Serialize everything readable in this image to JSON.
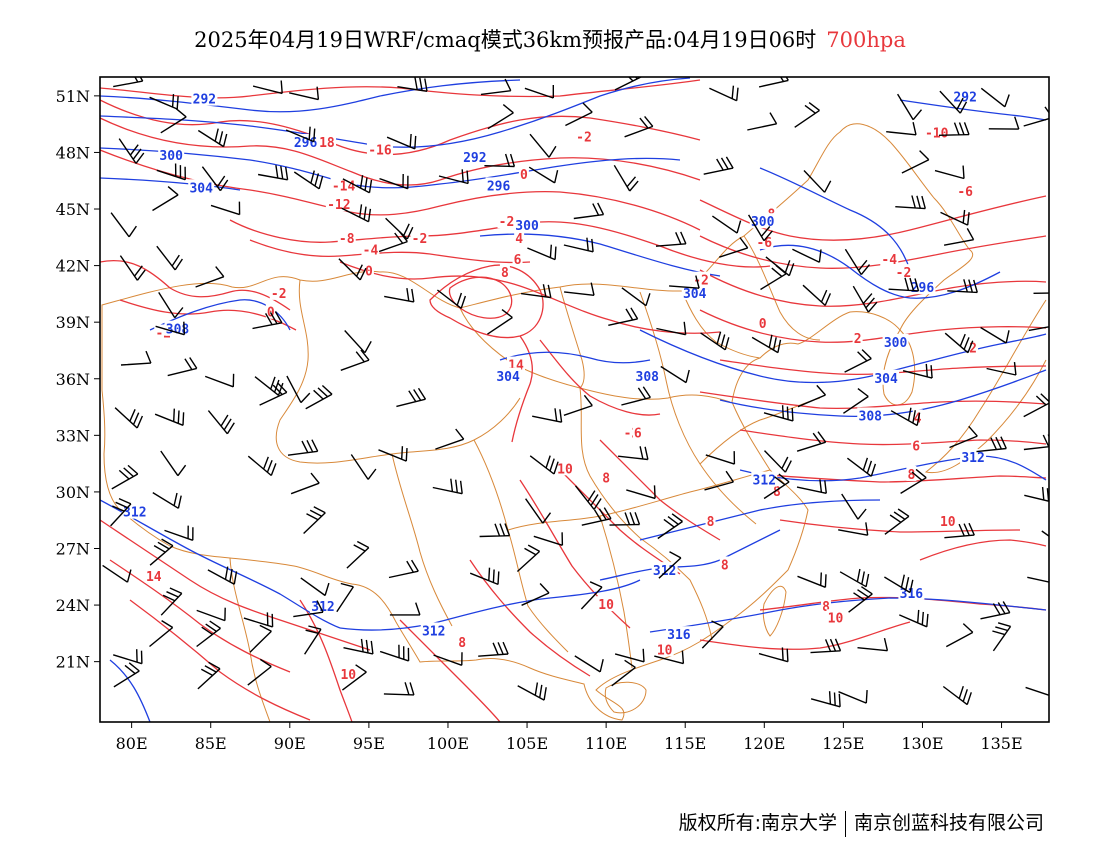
{
  "title": {
    "main": "2025年04月19日WRF/cmaq模式36km预报产品:04月19日06时",
    "level": "700hpa"
  },
  "colors": {
    "temperature": "#e8373c",
    "height": "#1f3fe0",
    "boundary": "#d8893a",
    "wind": "#000000",
    "level_text": "#e8373c"
  },
  "map": {
    "lon_range": [
      78,
      138
    ],
    "lat_range": [
      17.8,
      52
    ],
    "lon_ticks": [
      "80E",
      "85E",
      "90E",
      "95E",
      "100E",
      "105E",
      "110E",
      "115E",
      "120E",
      "125E",
      "130E",
      "135E"
    ],
    "lat_ticks": [
      "51N",
      "48N",
      "45N",
      "42N",
      "39N",
      "36N",
      "33N",
      "30N",
      "27N",
      "24N",
      "21N"
    ],
    "temperature_labels": [
      {
        "text": "-18",
        "lon": 92.1,
        "lat": 48.5
      },
      {
        "text": "-16",
        "lon": 95.7,
        "lat": 48.1
      },
      {
        "text": "-14",
        "lon": 93.4,
        "lat": 46.2
      },
      {
        "text": "-12",
        "lon": 93.1,
        "lat": 45.2
      },
      {
        "text": "-8",
        "lon": 93.6,
        "lat": 43.4
      },
      {
        "text": "-4",
        "lon": 95.1,
        "lat": 42.8
      },
      {
        "text": "-2",
        "lon": 98.2,
        "lat": 43.4
      },
      {
        "text": "-2",
        "lon": 108.6,
        "lat": 48.8
      },
      {
        "text": "0",
        "lon": 104.8,
        "lat": 46.8
      },
      {
        "text": "-2",
        "lon": 103.7,
        "lat": 44.3
      },
      {
        "text": "4",
        "lon": 104.5,
        "lat": 43.4
      },
      {
        "text": "6",
        "lon": 104.4,
        "lat": 42.3
      },
      {
        "text": "8",
        "lon": 103.6,
        "lat": 41.6
      },
      {
        "text": "0",
        "lon": 95.0,
        "lat": 41.7
      },
      {
        "text": "-2",
        "lon": 89.3,
        "lat": 40.5
      },
      {
        "text": "0",
        "lon": 88.8,
        "lat": 39.5
      },
      {
        "text": "-2",
        "lon": 82.0,
        "lat": 38.4
      },
      {
        "text": "14",
        "lon": 104.3,
        "lat": 36.7
      },
      {
        "text": "-2",
        "lon": 116.0,
        "lat": 41.2
      },
      {
        "text": "-4",
        "lon": 127.9,
        "lat": 42.3
      },
      {
        "text": "-2",
        "lon": 128.8,
        "lat": 41.6
      },
      {
        "text": "-6",
        "lon": 120.0,
        "lat": 43.2
      },
      {
        "text": "-8",
        "lon": 120.2,
        "lat": 44.7
      },
      {
        "text": "-6",
        "lon": 132.7,
        "lat": 45.9
      },
      {
        "text": "-10",
        "lon": 130.9,
        "lat": 49.0
      },
      {
        "text": "0",
        "lon": 119.9,
        "lat": 38.9
      },
      {
        "text": "2",
        "lon": 125.9,
        "lat": 38.1
      },
      {
        "text": "2",
        "lon": 133.2,
        "lat": 37.6
      },
      {
        "text": "4",
        "lon": 129.7,
        "lat": 33.9
      },
      {
        "text": "6",
        "lon": 129.6,
        "lat": 32.4
      },
      {
        "text": "8",
        "lon": 129.3,
        "lat": 30.9
      },
      {
        "text": "10",
        "lon": 131.6,
        "lat": 28.4
      },
      {
        "text": "-2",
        "lon": 111.6,
        "lat": 33.1
      },
      {
        "text": "6",
        "lon": 112.0,
        "lat": 33.1
      },
      {
        "text": "8",
        "lon": 110.0,
        "lat": 30.7
      },
      {
        "text": "10",
        "lon": 107.4,
        "lat": 31.2
      },
      {
        "text": "8",
        "lon": 116.6,
        "lat": 28.4
      },
      {
        "text": "8",
        "lon": 120.8,
        "lat": 30.0
      },
      {
        "text": "8",
        "lon": 117.5,
        "lat": 26.1
      },
      {
        "text": "8",
        "lon": 123.9,
        "lat": 23.9
      },
      {
        "text": "10",
        "lon": 124.5,
        "lat": 23.3
      },
      {
        "text": "10",
        "lon": 110.0,
        "lat": 24.0
      },
      {
        "text": "10",
        "lon": 113.7,
        "lat": 21.6
      },
      {
        "text": "8",
        "lon": 100.9,
        "lat": 22.0
      },
      {
        "text": "10",
        "lon": 93.7,
        "lat": 20.3
      },
      {
        "text": "14",
        "lon": 81.4,
        "lat": 25.5
      }
    ],
    "height_labels": [
      {
        "text": "292",
        "lon": 84.6,
        "lat": 50.8
      },
      {
        "text": "296",
        "lon": 91.0,
        "lat": 48.5
      },
      {
        "text": "300",
        "lon": 82.5,
        "lat": 47.8
      },
      {
        "text": "304",
        "lon": 84.4,
        "lat": 46.1
      },
      {
        "text": "292",
        "lon": 101.7,
        "lat": 47.7
      },
      {
        "text": "296",
        "lon": 103.2,
        "lat": 46.2
      },
      {
        "text": "300",
        "lon": 105.0,
        "lat": 44.1
      },
      {
        "text": "300",
        "lon": 119.9,
        "lat": 44.3
      },
      {
        "text": "296",
        "lon": 130.0,
        "lat": 40.8
      },
      {
        "text": "292",
        "lon": 132.7,
        "lat": 50.9
      },
      {
        "text": "300",
        "lon": 128.3,
        "lat": 37.9
      },
      {
        "text": "304",
        "lon": 127.7,
        "lat": 36.0
      },
      {
        "text": "308",
        "lon": 126.7,
        "lat": 34.0
      },
      {
        "text": "312",
        "lon": 133.2,
        "lat": 31.8
      },
      {
        "text": "312",
        "lon": 120.0,
        "lat": 30.6
      },
      {
        "text": "312",
        "lon": 113.7,
        "lat": 25.8
      },
      {
        "text": "316",
        "lon": 114.6,
        "lat": 22.4
      },
      {
        "text": "316",
        "lon": 129.3,
        "lat": 24.6
      },
      {
        "text": "312",
        "lon": 80.2,
        "lat": 28.9
      },
      {
        "text": "312",
        "lon": 92.1,
        "lat": 23.9
      },
      {
        "text": "312",
        "lon": 99.1,
        "lat": 22.6
      },
      {
        "text": "308",
        "lon": 112.6,
        "lat": 36.1
      },
      {
        "text": "304",
        "lon": 115.6,
        "lat": 40.5
      },
      {
        "text": "304",
        "lon": 103.8,
        "lat": 36.1
      },
      {
        "text": "308",
        "lon": 82.9,
        "lat": 38.6
      }
    ]
  },
  "footer": {
    "left": "版权所有:南京大学",
    "right": "南京创蓝科技有限公司"
  }
}
